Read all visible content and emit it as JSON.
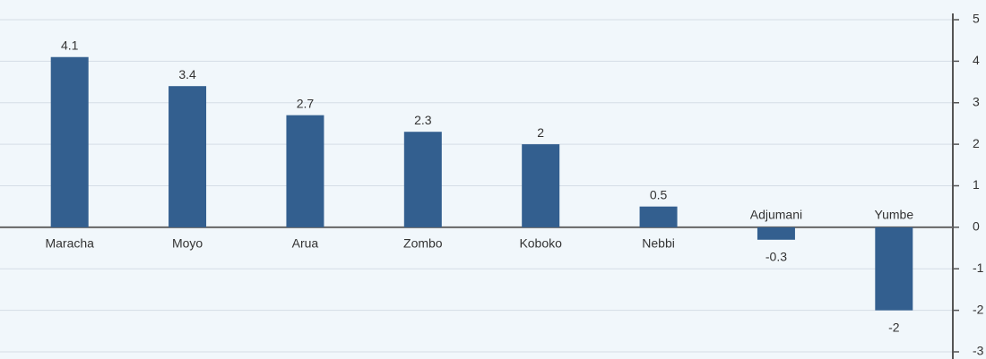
{
  "chart_data": {
    "type": "bar",
    "categories": [
      "Maracha",
      "Moyo",
      "Arua",
      "Zombo",
      "Koboko",
      "Nebbi",
      "Adjumani",
      "Yumbe"
    ],
    "values": [
      4.1,
      3.4,
      2.7,
      2.3,
      2,
      0.5,
      -0.3,
      -2
    ],
    "color": "#335f8f",
    "ylim": [
      -3,
      5
    ],
    "yticks": [
      -3,
      -2,
      -1,
      0,
      1,
      2,
      3,
      4,
      5
    ],
    "grid": true
  }
}
